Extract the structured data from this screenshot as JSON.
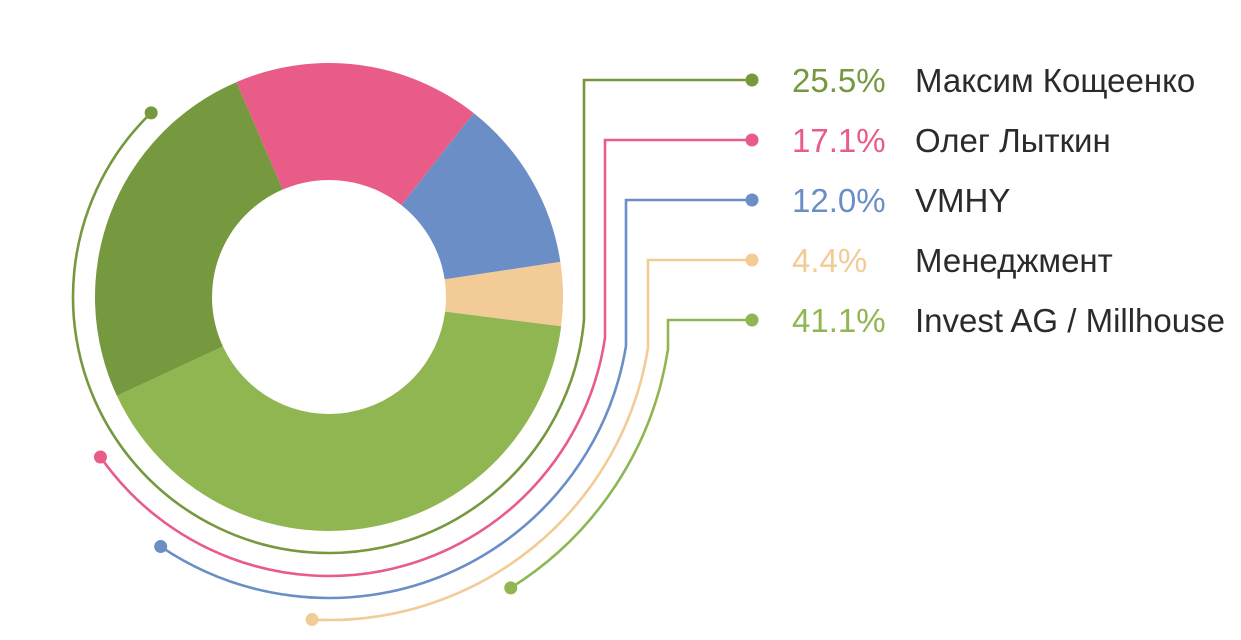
{
  "chart_data": {
    "type": "pie",
    "variant": "donut",
    "legend_position": "right",
    "slices": [
      {
        "label": "Максим Кощеенко",
        "value": 25.5,
        "percent_label": "25.5%",
        "color": "#76983f"
      },
      {
        "label": "Олег Лыткин",
        "value": 17.1,
        "percent_label": "17.1%",
        "color": "#e85c87"
      },
      {
        "label": "VMHY",
        "value": 12.0,
        "percent_label": "12.0%",
        "color": "#6a8ec5"
      },
      {
        "label": "Менеджмент",
        "value": 4.4,
        "percent_label": "4.4%",
        "color": "#f2cb96"
      },
      {
        "label": "Invest AG / Millhouse",
        "value": 41.1,
        "percent_label": "41.1%",
        "color": "#90b651"
      }
    ]
  },
  "colors": {
    "label_text": "#2b2b2b",
    "background": "#ffffff"
  }
}
